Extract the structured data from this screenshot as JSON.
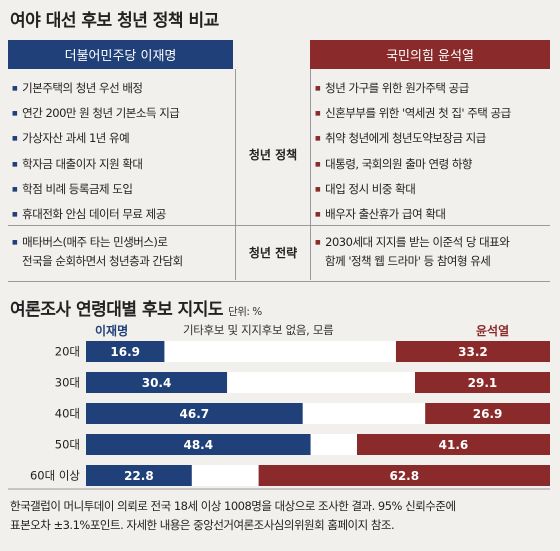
{
  "title": "여야 대선 후보 청년 정책 비교",
  "left_candidate": {
    "header": "더불어민주당 이재명"
  },
  "right_candidate": {
    "header": "국민의힘 윤석열"
  },
  "youth_policy": {
    "label": "청년 정책",
    "left_items": [
      "기본주택의 청년 우선 배정",
      "연간 200만 원 청년 기본소득 지급",
      "가상자산 과세 1년 유예",
      "학자금 대출이자 지원 확대",
      "학점 비례 등록금제 도입",
      "휴대전화 안심 데이터 무료 제공"
    ],
    "right_items": [
      "청년 가구를 위한 원가주택 공급",
      "신혼부부를 위한 '역세권 첫 집' 주택 공급",
      "취약 청년에게 청년도약보장금 지급",
      "대통령, 국회의원 출마 연령 하향",
      "대입 정시 비중 확대",
      "배우자 출산휴가 급여 확대"
    ]
  },
  "youth_strategy": {
    "label": "청년 전략",
    "left_lines": [
      "매타버스(매주 타는 민생버스)로",
      "전국을 순회하면서 청년층과 간담회"
    ],
    "right_lines": [
      "2030세대 지지를 받는 이준석 당 대표와",
      "함께 '정책 웹 드라마' 등 참여형 유세"
    ]
  },
  "poll_title": "여론조사 연령대별 후보 지지도",
  "poll_unit": "단위: %",
  "legend": {
    "left": "이재명",
    "middle": "기타후보 및 지지후보 없음, 모름",
    "right": "윤석열"
  },
  "colors": {
    "left": "#20407a",
    "right": "#8b2a2a",
    "middle": "#ffffff"
  },
  "chart_data": {
    "type": "bar",
    "orientation": "horizontal-stacked",
    "categories": [
      "20대",
      "30대",
      "40대",
      "50대",
      "60대 이상"
    ],
    "series": [
      {
        "name": "이재명",
        "values": [
          16.9,
          30.4,
          46.7,
          48.4,
          22.8
        ]
      },
      {
        "name": "윤석열",
        "values": [
          33.2,
          29.1,
          26.9,
          41.6,
          62.8
        ]
      }
    ],
    "xlim": [
      0,
      100
    ]
  },
  "footnote_lines": [
    "한국갤럽이 머니투데이 의뢰로 전국 18세 이상 1008명을 대상으로 조사한 결과. 95% 신뢰수준에",
    "표본오차 ±3.1%포인트. 자세한 내용은 중앙선거여론조사심의위원회 홈페이지 참조."
  ]
}
